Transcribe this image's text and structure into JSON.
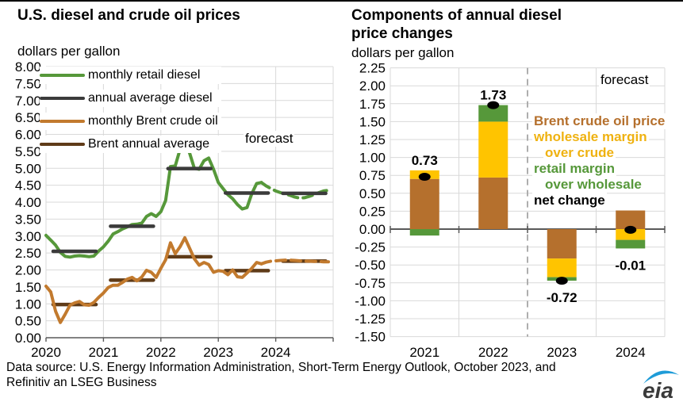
{
  "footer": {
    "source_text": "Data source: U.S. Energy Information Administration, Short-Term Energy Outlook, October 2023, and Refinitiv an LSEG Business",
    "logo_text": "eia"
  },
  "colors": {
    "green": "#56983A",
    "dark": "#3B3B3B",
    "orange": "#C27A2E",
    "dark_brown": "#5F3B18",
    "bar_brown": "#B5702D",
    "bar_yellow": "#FFC400",
    "grid": "#D9D9D9",
    "axis": "#595959",
    "divider": "#A6A6A6"
  },
  "chart_data": [
    {
      "type": "line",
      "title": "U.S. diesel and crude oil prices",
      "units": "dollars per gallon",
      "forecast_label": "forecast",
      "ylim": [
        0,
        8
      ],
      "ytick_step": 0.5,
      "x_years": [
        "2020",
        "2021",
        "2022",
        "2023",
        "2024"
      ],
      "forecast_start_month_index": 45,
      "series": [
        {
          "name": "monthly retail diesel",
          "color": "#56983A",
          "kind": "monthly",
          "monthly": [
            3.02,
            2.88,
            2.73,
            2.52,
            2.4,
            2.38,
            2.41,
            2.42,
            2.41,
            2.39,
            2.41,
            2.56,
            2.68,
            2.85,
            3.06,
            3.13,
            3.21,
            3.27,
            3.34,
            3.35,
            3.38,
            3.58,
            3.66,
            3.58,
            3.72,
            4.05,
            5.05,
            5.07,
            5.55,
            5.75,
            5.45,
            5.0,
            4.97,
            5.22,
            5.3,
            4.97,
            4.58,
            4.4,
            4.22,
            4.1,
            3.93,
            3.8,
            3.84,
            4.25,
            4.55,
            4.58,
            4.48,
            4.4,
            4.33,
            4.28,
            4.24,
            4.2,
            4.15,
            4.12,
            4.13,
            4.17,
            4.22,
            4.28,
            4.33,
            4.35
          ]
        },
        {
          "name": "annual average diesel",
          "color": "#3B3B3B",
          "kind": "annual",
          "annual": [
            2.55,
            3.29,
            4.99,
            4.27,
            4.26
          ]
        },
        {
          "name": "monthly Brent crude oil",
          "color": "#C27A2E",
          "kind": "monthly",
          "monthly": [
            1.52,
            1.35,
            0.78,
            0.45,
            0.69,
            0.96,
            1.03,
            1.07,
            0.97,
            0.96,
            1.04,
            1.19,
            1.32,
            1.48,
            1.55,
            1.55,
            1.63,
            1.73,
            1.78,
            1.68,
            1.79,
            1.99,
            1.93,
            1.78,
            2.05,
            2.3,
            2.8,
            2.48,
            2.68,
            2.95,
            2.64,
            2.33,
            2.14,
            2.22,
            2.16,
            1.93,
            1.98,
            1.96,
            1.86,
            2.0,
            1.8,
            1.78,
            1.91,
            2.05,
            2.22,
            2.18,
            2.23,
            2.26,
            2.27,
            2.28,
            2.29,
            2.29,
            2.28,
            2.27,
            2.26,
            2.26,
            2.25,
            2.25,
            2.24,
            2.24
          ]
        },
        {
          "name": "Brent annual average",
          "color": "#5F3B18",
          "kind": "annual",
          "annual": [
            0.98,
            1.7,
            2.39,
            1.98,
            2.26
          ]
        }
      ]
    },
    {
      "type": "bar",
      "title": "Components of annual diesel price changes",
      "units": "dollars per gallon",
      "forecast_label": "forecast",
      "ylim": [
        -1.5,
        2.25
      ],
      "ytick_step": 0.25,
      "categories": [
        "2021",
        "2022",
        "2023",
        "2024"
      ],
      "forecast_divider_after_index": 1,
      "series": [
        {
          "name": "Brent crude oil price",
          "color": "#B5702D",
          "values": [
            0.7,
            0.72,
            -0.41,
            0.26
          ]
        },
        {
          "name": "wholesale margin over crude",
          "color": "#FFC400",
          "values": [
            0.12,
            0.78,
            -0.26,
            -0.15
          ]
        },
        {
          "name": "retail margin over wholesale",
          "color": "#56983A",
          "values": [
            -0.09,
            0.23,
            -0.05,
            -0.12
          ]
        }
      ],
      "net_change": {
        "name": "net change",
        "values": [
          0.73,
          1.73,
          -0.72,
          -0.01
        ],
        "labels": [
          "0.73",
          "1.73",
          "-0.72",
          "-0.01"
        ]
      },
      "legend_lines": [
        {
          "text": "Brent crude oil price",
          "color": "#B5702D",
          "indent": 0
        },
        {
          "text": "wholesale margin",
          "color": "#EFB211",
          "indent": 0
        },
        {
          "text": "over crude",
          "color": "#EFB211",
          "indent": 14
        },
        {
          "text": "retail margin",
          "color": "#56983A",
          "indent": 0
        },
        {
          "text": "over wholesale",
          "color": "#56983A",
          "indent": 14
        },
        {
          "text": "net change",
          "color": "#000000",
          "indent": 0
        }
      ]
    }
  ]
}
